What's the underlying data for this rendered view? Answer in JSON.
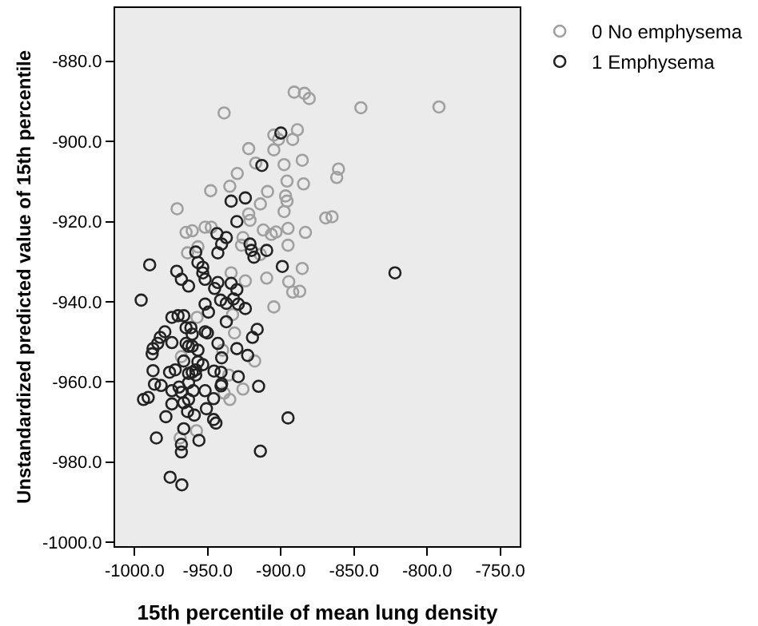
{
  "chart_data": {
    "type": "scatter",
    "xlabel": "15th percentile of mean lung density",
    "ylabel": "Unstandardized predicted value of 15th percentile",
    "xlim": [
      -1013.3,
      -736.7
    ],
    "ylim": [
      -1001,
      -866.7
    ],
    "xticks": [
      {
        "value": -1000,
        "label": "-1000.0"
      },
      {
        "value": -950,
        "label": "-950.0"
      },
      {
        "value": -900,
        "label": "-900.0"
      },
      {
        "value": -850,
        "label": "-850.0"
      },
      {
        "value": -800,
        "label": "-800.0"
      },
      {
        "value": -750,
        "label": "-750.0"
      }
    ],
    "yticks": [
      {
        "value": -880,
        "label": "-880.0"
      },
      {
        "value": -900,
        "label": "-900.0"
      },
      {
        "value": -920,
        "label": "-920.0"
      },
      {
        "value": -940,
        "label": "-940.0"
      },
      {
        "value": -960,
        "label": "-960.0"
      },
      {
        "value": -980,
        "label": "-980.0"
      },
      {
        "value": -1000,
        "label": "-1000.0"
      }
    ],
    "grid": false,
    "legend": "top right",
    "marker": "circle",
    "series": [
      {
        "name": "0 No emphysema",
        "color": "#a0a0a0",
        "x": [
          -890.9,
          -883.9,
          -880.6,
          -938.8,
          -845.3,
          -791.9,
          -904.8,
          -901.6,
          -888.7,
          -891.9,
          -922.0,
          -904.8,
          -917.2,
          -897.8,
          -885.4,
          -860.6,
          -861.8,
          -929.8,
          -948.0,
          -934.9,
          -909.1,
          -895.8,
          -884.5,
          -896.8,
          -895.8,
          -914.0,
          -970.9,
          -897.8,
          -869.3,
          -865.0,
          -922.0,
          -921.1,
          -951.8,
          -947.6,
          -964.8,
          -960.6,
          -956.7,
          -963.8,
          -925.9,
          -912.0,
          -906.5,
          -903.3,
          -895.1,
          -883.2,
          -926.9,
          -895.1,
          -914.0,
          -885.4,
          -934.0,
          -924.3,
          -909.7,
          -894.6,
          -891.9,
          -887.1,
          -904.8,
          -933.0,
          -957.3,
          -931.7,
          -939.8,
          -917.9,
          -968.0,
          -935.6,
          -925.9,
          -938.8,
          -934.9,
          -957.7,
          -968.9
        ],
        "values": [
          -887.7,
          -888.0,
          -889.3,
          -892.9,
          -891.6,
          -891.4,
          -898.4,
          -899.5,
          -897.1,
          -899.5,
          -901.8,
          -902.1,
          -905.4,
          -905.8,
          -904.7,
          -906.9,
          -909.0,
          -908.0,
          -912.3,
          -911.2,
          -912.5,
          -909.9,
          -910.6,
          -913.6,
          -914.9,
          -915.6,
          -916.8,
          -917.5,
          -919.1,
          -918.8,
          -918.1,
          -919.7,
          -921.4,
          -921.4,
          -922.7,
          -922.3,
          -926.3,
          -927.8,
          -924.0,
          -922.1,
          -923.2,
          -922.6,
          -921.7,
          -922.7,
          -925.9,
          -925.9,
          -928.2,
          -931.7,
          -932.8,
          -934.8,
          -934.1,
          -935.0,
          -937.6,
          -937.4,
          -941.3,
          -943.2,
          -943.9,
          -947.8,
          -952.1,
          -954.8,
          -953.7,
          -958.3,
          -961.8,
          -962.8,
          -964.4,
          -972.2,
          -974.0
        ]
      },
      {
        "name": "1 Emphysema",
        "color": "#222222",
        "x": [
          -900.0,
          -913.0,
          -924.3,
          -934.0,
          -930.1,
          -943.7,
          -937.3,
          -940.5,
          -943.1,
          -958.2,
          -921.1,
          -920.1,
          -918.4,
          -909.7,
          -899.0,
          -989.7,
          -971.2,
          -956.7,
          -953.4,
          -953.4,
          -951.8,
          -968.0,
          -963.1,
          -943.1,
          -945.3,
          -934.0,
          -930.1,
          -995.5,
          -951.8,
          -941.2,
          -937.3,
          -932.4,
          -929.1,
          -924.3,
          -949.5,
          -974.5,
          -970.3,
          -966.4,
          -937.3,
          -964.8,
          -961.5,
          -960.6,
          -951.8,
          -950.2,
          -916.2,
          -919.4,
          -979.3,
          -982.5,
          -984.2,
          -987.4,
          -988.0,
          -974.5,
          -964.8,
          -963.1,
          -960.6,
          -956.7,
          -943.0,
          -930.1,
          -922.7,
          -940.5,
          -956.7,
          -958.2,
          -953.4,
          -966.4,
          -987.4,
          -976.1,
          -972.2,
          -963.1,
          -960.6,
          -958.2,
          -945.7,
          -940.9,
          -940.5,
          -929.1,
          -986.4,
          -981.9,
          -974.5,
          -969.6,
          -968.0,
          -963.1,
          -959.9,
          -951.8,
          -940.9,
          -915.2,
          -993.9,
          -990.7,
          -974.5,
          -966.4,
          -963.1,
          -963.8,
          -959.2,
          -950.9,
          -946.0,
          -978.6,
          -946.0,
          -944.4,
          -895.1,
          -966.4,
          -985.1,
          -968.0,
          -968.0,
          -956.0,
          -914.0,
          -975.7,
          -967.7,
          -822.0
        ],
        "values": [
          -897.9,
          -906.0,
          -914.1,
          -914.9,
          -920.0,
          -923.0,
          -924.0,
          -925.6,
          -927.8,
          -927.6,
          -925.6,
          -927.2,
          -928.9,
          -927.2,
          -931.2,
          -930.8,
          -932.4,
          -930.2,
          -931.4,
          -932.8,
          -934.4,
          -934.4,
          -936.1,
          -935.2,
          -936.7,
          -935.4,
          -937.0,
          -939.6,
          -940.6,
          -939.6,
          -940.4,
          -939.3,
          -940.6,
          -941.7,
          -942.6,
          -943.9,
          -943.5,
          -943.5,
          -945.0,
          -946.5,
          -946.5,
          -948.1,
          -947.5,
          -947.8,
          -946.9,
          -948.9,
          -947.5,
          -948.9,
          -950.4,
          -951.7,
          -953.0,
          -950.2,
          -950.4,
          -951.1,
          -951.1,
          -952.1,
          -950.4,
          -951.7,
          -953.4,
          -954.0,
          -955.0,
          -957.0,
          -955.7,
          -954.8,
          -957.2,
          -957.6,
          -957.0,
          -957.9,
          -957.6,
          -958.3,
          -957.3,
          -957.6,
          -960.5,
          -958.7,
          -960.6,
          -960.9,
          -962.2,
          -961.3,
          -962.6,
          -960.2,
          -962.2,
          -962.2,
          -961.0,
          -961.1,
          -964.4,
          -963.9,
          -965.5,
          -965.2,
          -964.4,
          -967.4,
          -968.3,
          -966.7,
          -964.2,
          -968.7,
          -969.4,
          -970.3,
          -969.0,
          -971.7,
          -974.0,
          -975.6,
          -977.5,
          -974.6,
          -977.3,
          -983.8,
          -985.7,
          -932.8
        ]
      }
    ]
  }
}
